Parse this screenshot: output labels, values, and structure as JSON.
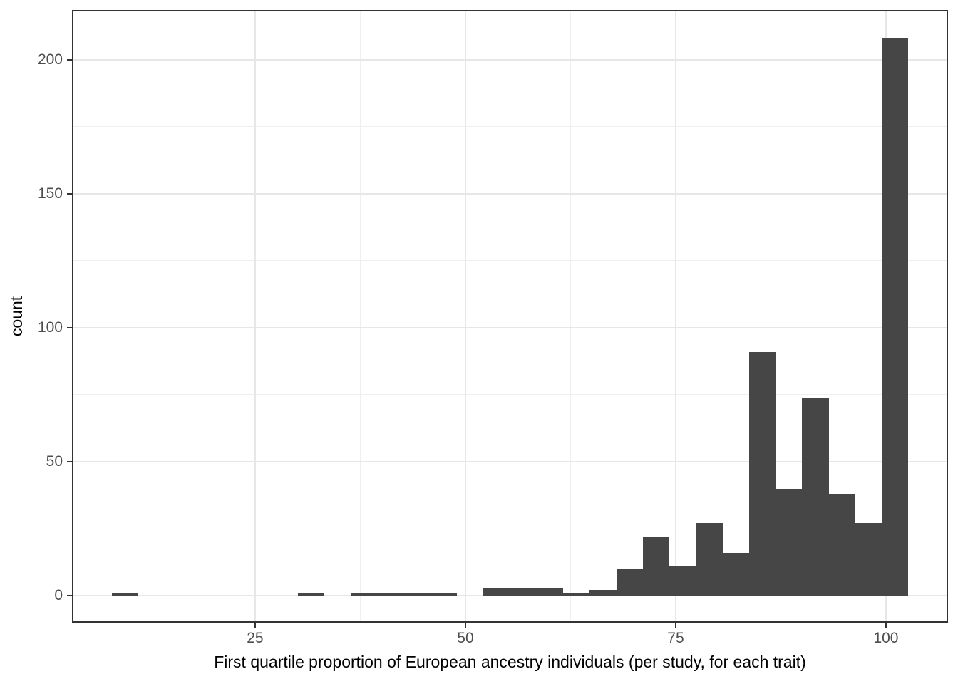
{
  "chart_data": {
    "type": "bar",
    "subtype": "histogram",
    "title": "",
    "xlabel": "First quartile proportion of European ancestry individuals (per study, for each trait)",
    "ylabel": "count",
    "x_ticks": [
      25,
      50,
      75,
      100
    ],
    "x_minor_ticks": [
      12.5,
      37.5,
      62.5,
      87.5
    ],
    "y_ticks": [
      0,
      50,
      100,
      150,
      200
    ],
    "y_minor_ticks": [
      25,
      75,
      125,
      175
    ],
    "xlim": [
      3.31,
      107.29
    ],
    "ylim": [
      -9.84,
      218.35
    ],
    "grid": true,
    "legend": "none",
    "bin_start": 7.97,
    "bin_width": 3.156,
    "counts": [
      1,
      0,
      0,
      0,
      0,
      0,
      0,
      1,
      0,
      1,
      1,
      1,
      1,
      0,
      3,
      3,
      3,
      1,
      2,
      10,
      22,
      11,
      27,
      16,
      91,
      40,
      74,
      38,
      27,
      208
    ],
    "colors": {
      "bar_fill": "#464646",
      "grid_major": "#E7E7E7",
      "grid_minor": "#EFEFEF",
      "panel_border": "#333333",
      "tick_mark": "#333333",
      "tick_label": "#4D4D4D",
      "axis_title": "#000000",
      "background": "#FFFFFF"
    }
  }
}
